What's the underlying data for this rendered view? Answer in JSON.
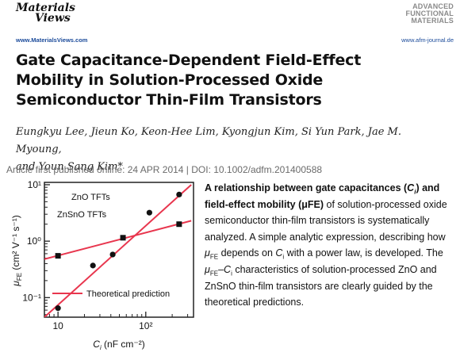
{
  "header": {
    "left_logo": {
      "line1": "Materials",
      "line2": "Views",
      "url": "www.MaterialsViews.com"
    },
    "right_logo": {
      "line1": "ADVANCED",
      "line2": "FUNCTIONAL",
      "line3": "MATERIALS",
      "url": "www.afm-journal.de"
    }
  },
  "article": {
    "title": "Gate Capacitance-Dependent Field-Effect Mobility in Solution-Processed Oxide Semiconductor Thin-Film Transistors",
    "authors_line1": "Eungkyu Lee, Jieun Ko, Keon-Hee Lim, Kyongjun Kim, Si Yun Park, Jae M. Myoung,",
    "authors_line2": "and Youn Sang Kim*",
    "pub_info": "Article first published online: 24 APR 2014 | DOI: 10.1002/adfm.201400588"
  },
  "abstract": {
    "bold_1": "A relationship between gate capacitances (",
    "bold_ci": "C",
    "bold_ci_sub": "i",
    "bold_2": ") and field-effect mobility (μFE)",
    "text_1": " of solution-processed oxide semiconductor thin-film transistors is systematically analyzed. A simple analytic expression, describing how ",
    "mu_1": "μ",
    "mu_1_sub": "FE",
    "text_2": " depends on ",
    "ci_1": "C",
    "ci_1_sub": "i",
    "text_3": " with a power law, is developed. The ",
    "mu_2": "μ",
    "mu_2_sub": "FE",
    "dash": "–",
    "ci_2": "C",
    "ci_2_sub": "i",
    "text_4": " characteristics of solution-processed ZnO and ZnSnO thin-film transistors are clearly guided by the theoretical predictions."
  },
  "chart_data": {
    "type": "scatter",
    "x_log": true,
    "y_log": true,
    "xlim": [
      7,
      350
    ],
    "ylim": [
      0.045,
      11
    ],
    "x_ticks": [
      10,
      100
    ],
    "x_tick_labels": [
      "10",
      "10²"
    ],
    "y_ticks": [
      0.1,
      1,
      10
    ],
    "y_tick_labels": [
      "10⁻¹",
      "10⁰",
      "10¹"
    ],
    "xlabel_main": "C",
    "xlabel_sub": "i",
    "xlabel_unit": " (nF cm⁻²)",
    "ylabel_main": "μ",
    "ylabel_sub": "FE",
    "ylabel_unit": " (cm² V⁻¹ s⁻¹)",
    "grid": false,
    "colors": {
      "theory": "#e8364e",
      "points": "#111111"
    },
    "series": [
      {
        "name": "ZnO TFTs",
        "marker": "circle",
        "x": [
          10,
          25,
          42,
          110,
          240
        ],
        "y": [
          0.065,
          0.37,
          0.58,
          3.2,
          6.7
        ]
      },
      {
        "name": "ZnSnO TFTs",
        "marker": "square",
        "x": [
          10,
          55,
          240
        ],
        "y": [
          0.55,
          1.15,
          2.0
        ]
      }
    ],
    "theory_lines": [
      {
        "x": [
          7,
          330
        ],
        "y": [
          0.045,
          10
        ]
      },
      {
        "x": [
          7,
          330
        ],
        "y": [
          0.48,
          2.3
        ]
      }
    ],
    "legend": {
      "label": "Theoretical prediction",
      "placement": "bottom-right"
    }
  }
}
